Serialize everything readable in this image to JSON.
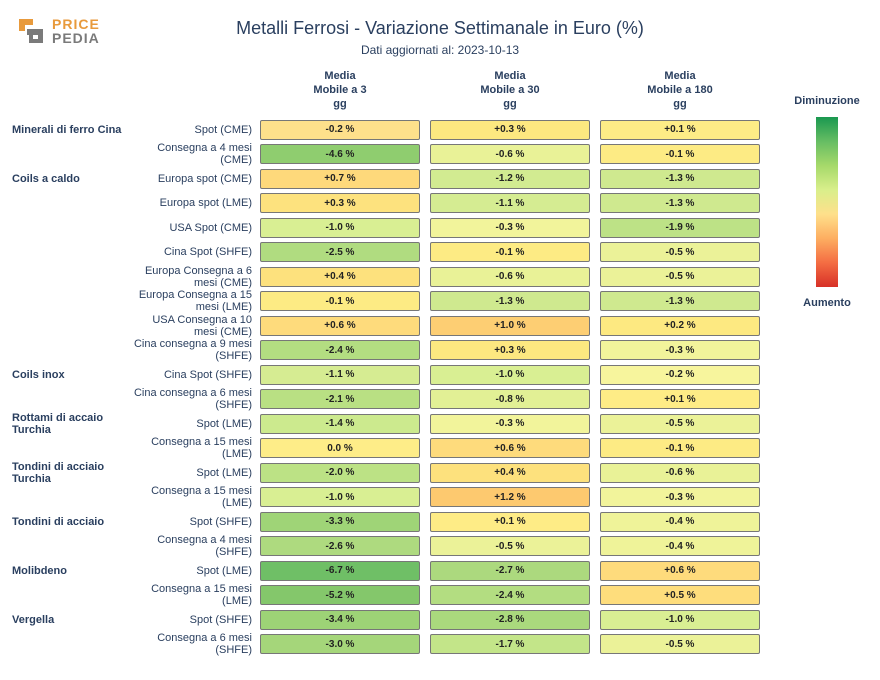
{
  "logo": {
    "top": "PRICE",
    "bot": "PEDIA"
  },
  "title": "Metalli Ferrosi - Variazione Settimanale in Euro (%)",
  "subtitle": "Dati aggiornati al: 2023-10-13",
  "columns": [
    "Media Mobile a 3 gg",
    "Media Mobile a 30 gg",
    "Media Mobile a 180 gg"
  ],
  "legend": {
    "top": "Diminuzione",
    "bottom": "Aumento"
  },
  "style": {
    "title_fontsize": 18,
    "subtitle_fontsize": 12,
    "header_fontsize": 11,
    "label_fontsize": 11,
    "cell_fontsize": 10,
    "cell_border_color": "#777777",
    "background_color": "#ffffff",
    "text_color": "#2a3f5f",
    "gradient_stops": [
      "#1a9850",
      "#66bd63",
      "#a6d96a",
      "#d9ef8b",
      "#fee08b",
      "#fdae61",
      "#f46d43",
      "#d73027"
    ]
  },
  "rows": [
    {
      "category": "Minerali di ferro Cina",
      "item": "Spot (CME)",
      "v": [
        -0.2,
        0.3,
        0.1
      ],
      "c": [
        "#fee08b",
        "#fde880",
        "#feec86"
      ]
    },
    {
      "category": "",
      "item": "Consegna a 4 mesi (CME)",
      "v": [
        -4.6,
        -0.6,
        -0.1
      ],
      "c": [
        "#8fcd6f",
        "#e9f297",
        "#fdeb84"
      ]
    },
    {
      "category": "Coils a caldo",
      "item": "Europa spot (CME)",
      "v": [
        0.7,
        -1.2,
        -1.3
      ],
      "c": [
        "#fed97b",
        "#d2eb91",
        "#cfe98f"
      ]
    },
    {
      "category": "",
      "item": "Europa spot (LME)",
      "v": [
        0.3,
        -1.1,
        -1.3
      ],
      "c": [
        "#fde27e",
        "#d5ec92",
        "#cfe98f"
      ]
    },
    {
      "category": "",
      "item": "USA Spot (CME)",
      "v": [
        -1.0,
        -0.3,
        -1.9
      ],
      "c": [
        "#d9ef93",
        "#f2f49b",
        "#bde286"
      ]
    },
    {
      "category": "",
      "item": "Cina Spot (SHFE)",
      "v": [
        -2.5,
        -0.1,
        -0.5
      ],
      "c": [
        "#b0dc80",
        "#fdeb84",
        "#ebf298"
      ]
    },
    {
      "category": "",
      "item": "Europa Consegna a 6 mesi (CME)",
      "v": [
        0.4,
        -0.6,
        -0.5
      ],
      "c": [
        "#fde17d",
        "#e9f297",
        "#ebf298"
      ]
    },
    {
      "category": "",
      "item": "Europa Consegna a 15 mesi (LME)",
      "v": [
        -0.1,
        -1.3,
        -1.3
      ],
      "c": [
        "#fdeb84",
        "#cfe98f",
        "#cfe98f"
      ]
    },
    {
      "category": "",
      "item": "USA Consegna a 10 mesi (CME)",
      "v": [
        0.6,
        1.0,
        0.2
      ],
      "c": [
        "#fedb7c",
        "#fdce73",
        "#fde981"
      ]
    },
    {
      "category": "",
      "item": "Cina consegna a 9 mesi (SHFE)",
      "v": [
        -2.4,
        0.3,
        -0.3
      ],
      "c": [
        "#b3dd81",
        "#fde880",
        "#f2f49b"
      ]
    },
    {
      "category": "Coils inox",
      "item": "Cina Spot (SHFE)",
      "v": [
        -1.1,
        -1.0,
        -0.2
      ],
      "c": [
        "#d6ec92",
        "#d9ef93",
        "#f7f59d"
      ]
    },
    {
      "category": "",
      "item": "Cina consegna a 6 mesi (SHFE)",
      "v": [
        -2.1,
        -0.8,
        0.1
      ],
      "c": [
        "#b9e083",
        "#e2f095",
        "#feec86"
      ]
    },
    {
      "category": "Rottami di accaio Turchia",
      "item": "Spot (LME)",
      "v": [
        -1.4,
        -0.3,
        -0.5
      ],
      "c": [
        "#ccea8e",
        "#f2f49b",
        "#ebf298"
      ]
    },
    {
      "category": "",
      "item": "Consegna a 15 mesi (LME)",
      "v": [
        0.0,
        0.6,
        -0.1
      ],
      "c": [
        "#feed88",
        "#fedb7c",
        "#fdeb84"
      ]
    },
    {
      "category": "Tondini di acciaio Turchia",
      "item": "Spot (LME)",
      "v": [
        -2.0,
        0.4,
        -0.6
      ],
      "c": [
        "#bce285",
        "#fde17d",
        "#e9f297"
      ]
    },
    {
      "category": "",
      "item": "Consegna a 15 mesi (LME)",
      "v": [
        -1.0,
        1.2,
        -0.3
      ],
      "c": [
        "#d9ef93",
        "#fdc96f",
        "#f2f49b"
      ]
    },
    {
      "category": "Tondini di acciaio",
      "item": "Spot (SHFE)",
      "v": [
        -3.3,
        0.1,
        -0.4
      ],
      "c": [
        "#9fd477",
        "#feec86",
        "#eff399"
      ]
    },
    {
      "category": "",
      "item": "Consegna a 4 mesi (SHFE)",
      "v": [
        -2.6,
        -0.5,
        -0.4
      ],
      "c": [
        "#aeda7f",
        "#ebf298",
        "#eff399"
      ]
    },
    {
      "category": "Molibdeno",
      "item": "Spot (LME)",
      "v": [
        -6.7,
        -2.7,
        0.6
      ],
      "c": [
        "#6fbf66",
        "#acd97e",
        "#fedb7c"
      ]
    },
    {
      "category": "",
      "item": "Consegna a 15 mesi (LME)",
      "v": [
        -5.2,
        -2.4,
        0.5
      ],
      "c": [
        "#84c76b",
        "#b3dd81",
        "#fedd7c"
      ]
    },
    {
      "category": "Vergella",
      "item": "Spot (SHFE)",
      "v": [
        -3.4,
        -2.8,
        -1.0
      ],
      "c": [
        "#9dd376",
        "#aad97d",
        "#d9ef93"
      ]
    },
    {
      "category": "",
      "item": "Consegna a 6 mesi (SHFE)",
      "v": [
        -3.0,
        -1.7,
        -0.5
      ],
      "c": [
        "#a5d67a",
        "#c3e589",
        "#ebf298"
      ]
    }
  ]
}
